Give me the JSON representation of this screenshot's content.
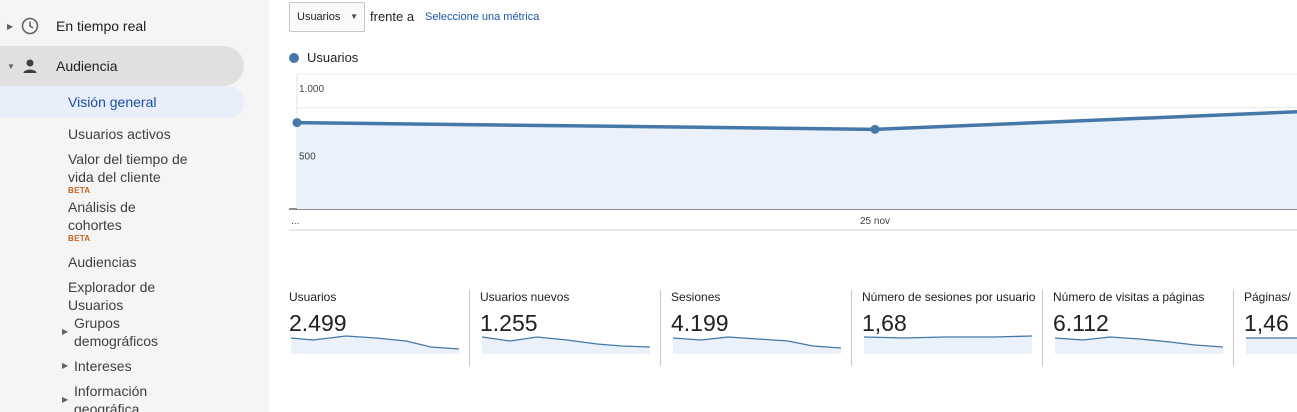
{
  "sidebar": {
    "realtime": {
      "label": "En tiempo real",
      "icon": "clock-icon"
    },
    "audience": {
      "label": "Audiencia",
      "icon": "person-icon"
    },
    "items": [
      {
        "label": "Visión general"
      },
      {
        "label": "Usuarios activos"
      },
      {
        "label": "Valor del tiempo de vida del cliente",
        "badge": "BETA"
      },
      {
        "label": "Análisis de cohortes",
        "badge": "BETA"
      },
      {
        "label": "Audiencias"
      },
      {
        "label": "Explorador de Usuarios"
      },
      {
        "label": "Grupos demográficos"
      },
      {
        "label": "Intereses"
      },
      {
        "label": "Información geográfica"
      }
    ]
  },
  "toolbar": {
    "metric_select": "Usuarios",
    "vs_label": "frente a",
    "select_metric_link": "Seleccione una métrica"
  },
  "chart_data": {
    "type": "line",
    "series": [
      {
        "name": "Usuarios",
        "values": [
          640,
          590,
          720
        ]
      }
    ],
    "x_labels": [
      "...",
      "25 nov"
    ],
    "y_ticks": [
      "1.000",
      "500"
    ],
    "ylim": [
      0,
      1000
    ],
    "color": "#4578a8"
  },
  "stats": [
    {
      "label": "Usuarios",
      "value": "2.499"
    },
    {
      "label": "Usuarios nuevos",
      "value": "1.255"
    },
    {
      "label": "Sesiones",
      "value": "4.199"
    },
    {
      "label": "Número de sesiones por usuario",
      "value": "1,68"
    },
    {
      "label": "Número de visitas a páginas",
      "value": "6.112"
    },
    {
      "label": "Páginas/",
      "value": "1,46"
    }
  ]
}
